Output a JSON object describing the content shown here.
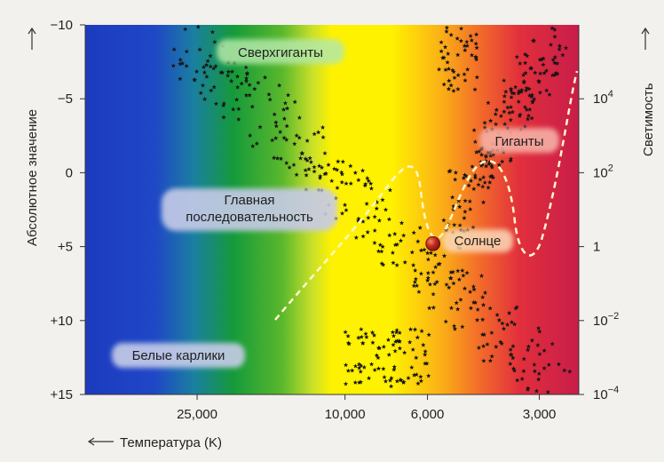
{
  "chart_data": {
    "type": "scatter",
    "title": "",
    "xlabel": "Температура (K)",
    "ylabel_left": "Абсолютное значение",
    "ylabel_right": "Светимость",
    "x_ticks": [
      {
        "value": 25000,
        "label": "25,000"
      },
      {
        "value": 10000,
        "label": "10,000"
      },
      {
        "value": 6000,
        "label": "6,000"
      },
      {
        "value": 3000,
        "label": "3,000"
      }
    ],
    "y_left_ticks": [
      {
        "value": -10,
        "label": "−10"
      },
      {
        "value": -5,
        "label": "−5"
      },
      {
        "value": 0,
        "label": "0"
      },
      {
        "value": 5,
        "label": "+5"
      },
      {
        "value": 10,
        "label": "+10"
      },
      {
        "value": 15,
        "label": "+15"
      }
    ],
    "y_right_ticks": [
      {
        "value": -5,
        "base": "10",
        "exp": "4"
      },
      {
        "value": 0,
        "base": "10",
        "exp": "2"
      },
      {
        "value": 5,
        "base": "1",
        "exp": ""
      },
      {
        "value": 10,
        "base": "10",
        "exp": "−2"
      },
      {
        "value": 15,
        "base": "10",
        "exp": "−4"
      }
    ],
    "ylim": [
      -10,
      15
    ],
    "x_axis_scale": "log, decreasing to the right",
    "background": "spectral color gradient from blue (hot) to red (cool)",
    "region_labels": [
      {
        "id": "supergiants",
        "text": "Сверхгиганты"
      },
      {
        "id": "giants",
        "text": "Гиганты"
      },
      {
        "id": "main-sequence-1",
        "text": "Главная"
      },
      {
        "id": "main-sequence-2",
        "text": "последовательность"
      },
      {
        "id": "white-dwarfs",
        "text": "Белые карлики"
      },
      {
        "id": "sun",
        "text": "Солнце"
      }
    ],
    "sun": {
      "temperature": 5800,
      "magnitude": 4.8
    },
    "colors": {
      "blue": "#1f3fbf",
      "green": "#1d9a2a",
      "yellow": "#fff200",
      "orange": "#f7941d",
      "red": "#d7263d",
      "sun": "#c0281c",
      "stars": "#141414",
      "curve": "#fff7c8"
    },
    "star_groups": [
      {
        "name": "supergiants",
        "t_range": [
          3000,
          30000
        ],
        "mag_range": [
          -10,
          -6
        ]
      },
      {
        "name": "main_sequence",
        "t_range": [
          2600,
          30000
        ],
        "mag_range": [
          -10,
          15
        ]
      },
      {
        "name": "giants",
        "t_range": [
          2600,
          5200
        ],
        "mag_range": [
          -10,
          3
        ]
      },
      {
        "name": "white_dwarfs",
        "t_range": [
          6000,
          10000
        ],
        "mag_range": [
          10,
          14.5
        ]
      }
    ]
  }
}
